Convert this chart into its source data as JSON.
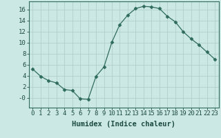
{
  "x": [
    0,
    1,
    2,
    3,
    4,
    5,
    6,
    7,
    8,
    9,
    10,
    11,
    12,
    13,
    14,
    15,
    16,
    17,
    18,
    19,
    20,
    21,
    22,
    23
  ],
  "y": [
    5.2,
    3.9,
    3.1,
    2.7,
    1.5,
    1.3,
    -0.2,
    -0.3,
    3.9,
    5.6,
    10.1,
    13.3,
    15.0,
    16.2,
    16.6,
    16.5,
    16.2,
    14.8,
    13.8,
    12.0,
    10.7,
    9.6,
    8.3,
    7.0
  ],
  "xlabel": "Humidex (Indice chaleur)",
  "xlim": [
    -0.5,
    23.5
  ],
  "ylim": [
    -1.8,
    17.5
  ],
  "yticks": [
    0,
    2,
    4,
    6,
    8,
    10,
    12,
    14,
    16
  ],
  "ytick_labels": [
    "-0",
    "2",
    "4",
    "6",
    "8",
    "10",
    "12",
    "14",
    "16"
  ],
  "xticks": [
    0,
    1,
    2,
    3,
    4,
    5,
    6,
    7,
    8,
    9,
    10,
    11,
    12,
    13,
    14,
    15,
    16,
    17,
    18,
    19,
    20,
    21,
    22,
    23
  ],
  "line_color": "#2e6b5e",
  "marker": "D",
  "marker_size": 2.5,
  "bg_color": "#cce8e4",
  "grid_color": "#b0d0cc",
  "spine_color": "#2e6b5e",
  "tick_color": "#1a4a40",
  "xlabel_fontsize": 7.5,
  "tick_fontsize": 6.5
}
